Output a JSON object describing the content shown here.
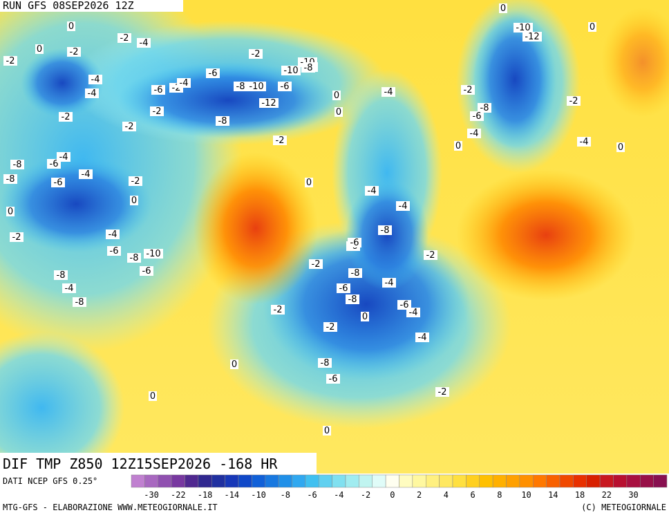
{
  "header": {
    "title": "RUN GFS 08SEP2026 12Z"
  },
  "map_labels": [
    "0",
    "-2",
    "-2",
    "-4",
    "-2",
    "0",
    "-2",
    "-4",
    "-4",
    "-6",
    "-2",
    "-4",
    "-6",
    "-8",
    "-10",
    "-10",
    "-8",
    "-12",
    "-2",
    "-8",
    "-2",
    "-2",
    "0",
    "-6",
    "-4",
    "-8",
    "-10",
    "-8",
    "-6",
    "-4",
    "-8",
    "-6",
    "-4",
    "-2",
    "0",
    "0",
    "-2",
    "-4",
    "-6",
    "-8",
    "-10",
    "-6",
    "-8",
    "-4",
    "-8",
    "-8",
    "-6",
    "-8",
    "-6",
    "-4",
    "-8",
    "-6",
    "-2",
    "-4",
    "-4",
    "-2",
    "0",
    "-8",
    "-6",
    "-10",
    "-12",
    "-8",
    "-6",
    "-4",
    "-2",
    "0",
    "0",
    "-4",
    "0",
    "0",
    "-2",
    "-2",
    "0",
    "0",
    "-4",
    "-4",
    "-6",
    "-2",
    "-2",
    "0",
    "0",
    "0",
    "-2"
  ],
  "footer": {
    "map_title": "DIF TMP Z850 12Z15SEP2026 -168 HR",
    "source": "DATI NCEP GFS 0.25°",
    "credit_left": "MTG-GFS - ELABORAZIONE WWW.METEOGIORNALE.IT",
    "credit_right": "(C) METEOGIORNALE"
  },
  "legend": {
    "ticks": [
      "-30",
      "-22",
      "-18",
      "-14",
      "-10",
      "-8",
      "-6",
      "-4",
      "-2",
      "0",
      "2",
      "4",
      "6",
      "8",
      "10",
      "14",
      "18",
      "22",
      "30"
    ],
    "colors": [
      "#c080d0",
      "#a868c0",
      "#9050b0",
      "#7838a0",
      "#502890",
      "#302890",
      "#2030a0",
      "#1838b8",
      "#1048c8",
      "#1060d8",
      "#1878e0",
      "#2090e8",
      "#30a8f0",
      "#40c0f0",
      "#60d0f0",
      "#80e0f0",
      "#a0ecf0",
      "#c0f4f0",
      "#e0fcf8",
      "#fffff0",
      "#fffcc0",
      "#fff8a0",
      "#fff080",
      "#ffe860",
      "#ffe040",
      "#ffd020",
      "#ffc000",
      "#ffb000",
      "#ffa000",
      "#ff9000",
      "#ff7800",
      "#f86000",
      "#f04800",
      "#e83000",
      "#d82000",
      "#c81820",
      "#b81030",
      "#a81040",
      "#981048",
      "#881050"
    ]
  }
}
